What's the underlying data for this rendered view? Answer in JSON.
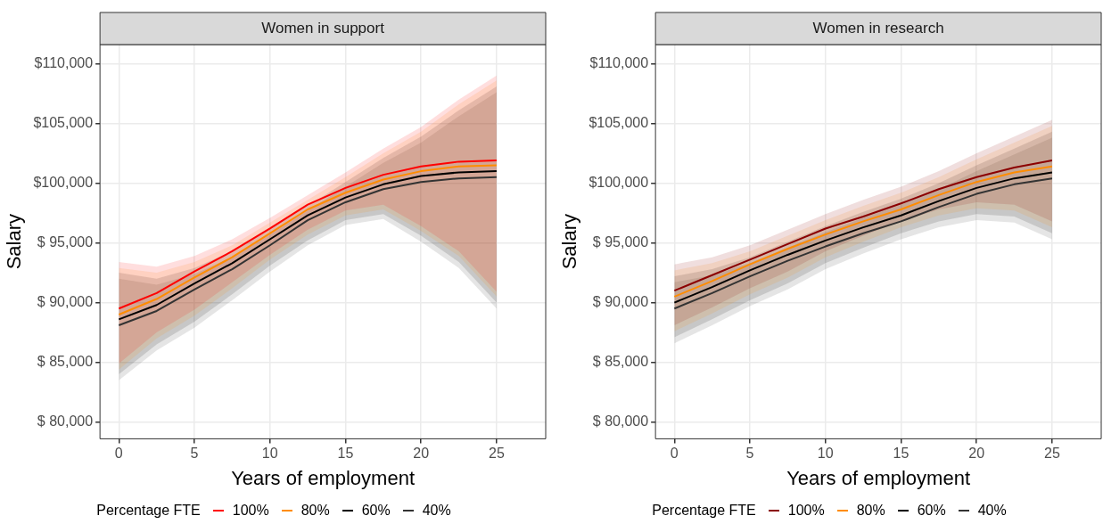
{
  "chart_data": [
    {
      "type": "line",
      "title": "Women in support",
      "xlabel": "Years of employment",
      "ylabel": "Salary",
      "legend_title": "Percentage FTE",
      "legend": "bottom",
      "grid": true,
      "xlim": [
        -1.25,
        28.25
      ],
      "xticks": [
        0,
        5,
        10,
        15,
        20,
        25
      ],
      "ylim": [
        78600,
        111600
      ],
      "yticks": [
        {
          "value": 80000,
          "label": "$ 80,000"
        },
        {
          "value": 85000,
          "label": "$ 85,000"
        },
        {
          "value": 90000,
          "label": "$ 90,000"
        },
        {
          "value": 95000,
          "label": "$ 95,000"
        },
        {
          "value": 100000,
          "label": "$100,000"
        },
        {
          "value": 105000,
          "label": "$105,000"
        },
        {
          "value": 110000,
          "label": "$110,000"
        }
      ],
      "x": [
        0,
        2.5,
        5,
        7.5,
        10,
        12.5,
        15,
        17.5,
        20,
        22.5,
        25
      ],
      "series": [
        {
          "name": "100%",
          "color": "#ff0000",
          "values": [
            89500,
            90800,
            92600,
            94300,
            96200,
            98200,
            99600,
            100700,
            101400,
            101800,
            101900
          ],
          "lower": [
            84900,
            87500,
            89400,
            91700,
            94000,
            96100,
            97700,
            98200,
            96400,
            94300,
            90900
          ],
          "upper": [
            93400,
            93000,
            93900,
            95300,
            97100,
            99000,
            100900,
            102900,
            104700,
            107000,
            109000
          ]
        },
        {
          "name": "80%",
          "color": "#ff8c00",
          "values": [
            89000,
            90300,
            92100,
            93800,
            95800,
            97800,
            99200,
            100300,
            101000,
            101400,
            101500
          ],
          "lower": [
            84400,
            87000,
            88900,
            91200,
            93600,
            95700,
            97300,
            97800,
            96000,
            93900,
            90500
          ],
          "upper": [
            92900,
            92500,
            93400,
            94800,
            96700,
            98600,
            100500,
            102500,
            104300,
            106600,
            108600
          ]
        },
        {
          "name": "60%",
          "color": "#000000",
          "values": [
            88600,
            89800,
            91600,
            93300,
            95300,
            97300,
            98800,
            99900,
            100600,
            100900,
            101000
          ],
          "lower": [
            84000,
            86500,
            88400,
            90700,
            93100,
            95200,
            96900,
            97400,
            95600,
            93400,
            90000
          ],
          "upper": [
            92500,
            92000,
            92900,
            94300,
            96200,
            98100,
            100100,
            102100,
            103900,
            106100,
            108100
          ]
        },
        {
          "name": "40%",
          "color": "#333333",
          "values": [
            88100,
            89300,
            91100,
            92800,
            94800,
            96900,
            98400,
            99500,
            100100,
            100400,
            100500
          ],
          "lower": [
            83500,
            86000,
            87900,
            90200,
            92600,
            94800,
            96500,
            97000,
            95100,
            92900,
            89500
          ],
          "upper": [
            92000,
            91500,
            92400,
            93800,
            95700,
            97700,
            99700,
            101700,
            103400,
            105600,
            107600
          ]
        }
      ]
    },
    {
      "type": "line",
      "title": "Women in research",
      "xlabel": "Years of employment",
      "ylabel": "Salary",
      "legend_title": "Percentage FTE",
      "legend": "bottom",
      "grid": true,
      "xlim": [
        -1.25,
        28.25
      ],
      "xticks": [
        0,
        5,
        10,
        15,
        20,
        25
      ],
      "ylim": [
        78600,
        111600
      ],
      "yticks": [
        {
          "value": 80000,
          "label": "$ 80,000"
        },
        {
          "value": 85000,
          "label": "$ 85,000"
        },
        {
          "value": 90000,
          "label": "$ 90,000"
        },
        {
          "value": 95000,
          "label": "$ 95,000"
        },
        {
          "value": 100000,
          "label": "$100,000"
        },
        {
          "value": 105000,
          "label": "$105,000"
        },
        {
          "value": 110000,
          "label": "$110,000"
        }
      ],
      "x": [
        0,
        2.5,
        5,
        7.5,
        10,
        12.5,
        15,
        17.5,
        20,
        22.5,
        25
      ],
      "series": [
        {
          "name": "100%",
          "color": "#8b0000",
          "values": [
            91000,
            92300,
            93600,
            94900,
            96200,
            97200,
            98300,
            99500,
            100500,
            101300,
            101900
          ],
          "lower": [
            88100,
            89600,
            91200,
            92600,
            94300,
            95600,
            96800,
            97800,
            98400,
            98200,
            96800
          ],
          "upper": [
            93200,
            93800,
            94800,
            96100,
            97400,
            98600,
            99700,
            101000,
            102500,
            103900,
            105300
          ]
        },
        {
          "name": "80%",
          "color": "#ff8c00",
          "values": [
            90500,
            91800,
            93200,
            94500,
            95700,
            96800,
            97800,
            99000,
            100100,
            100900,
            101400
          ],
          "lower": [
            87600,
            89100,
            90700,
            92100,
            93800,
            95100,
            96300,
            97300,
            97900,
            97700,
            96300
          ],
          "upper": [
            92700,
            93300,
            94300,
            95600,
            96900,
            98100,
            99200,
            100500,
            102000,
            103400,
            104800
          ]
        },
        {
          "name": "60%",
          "color": "#000000",
          "values": [
            90000,
            91300,
            92700,
            94000,
            95200,
            96300,
            97300,
            98500,
            99600,
            100400,
            100900
          ],
          "lower": [
            87100,
            88600,
            90200,
            91600,
            93300,
            94600,
            95800,
            96800,
            97400,
            97200,
            95800
          ],
          "upper": [
            92200,
            92800,
            93800,
            95100,
            96400,
            97600,
            98700,
            100000,
            101500,
            102900,
            104300
          ]
        },
        {
          "name": "40%",
          "color": "#333333",
          "values": [
            89500,
            90800,
            92200,
            93500,
            94700,
            95800,
            96800,
            98000,
            99100,
            99900,
            100400
          ],
          "lower": [
            86600,
            88100,
            89700,
            91100,
            92800,
            94100,
            95300,
            96300,
            96900,
            96700,
            95300
          ],
          "upper": [
            91700,
            92300,
            93300,
            94600,
            95900,
            97100,
            98200,
            99500,
            101000,
            102400,
            103800
          ]
        }
      ]
    }
  ]
}
